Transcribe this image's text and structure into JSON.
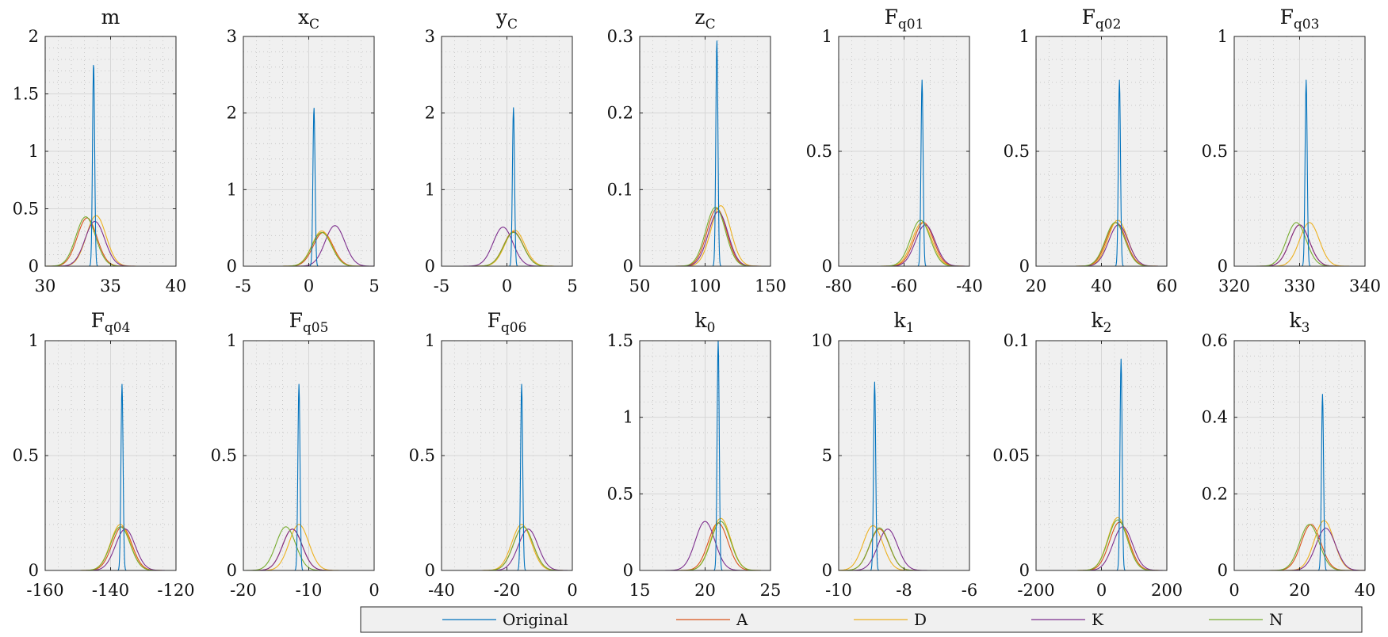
{
  "chart_data": {
    "type": "line",
    "figure": "Gaussian probability density curves per parameter (small multiples)",
    "series_names": [
      "Original",
      "A",
      "D",
      "K",
      "N"
    ],
    "colors": {
      "Original": "#0072BD",
      "A": "#D95319",
      "D": "#EDB120",
      "K": "#7E2F8E",
      "N": "#77AC30"
    },
    "panels": [
      {
        "title": "m",
        "sub": "",
        "xlim": [
          30,
          40
        ],
        "ylim": [
          0,
          2
        ],
        "xticks": [
          30,
          35,
          40
        ],
        "xticklabels": [
          "30",
          "35",
          "40"
        ],
        "yticks": [
          0,
          0.5,
          1,
          1.5,
          2
        ],
        "yticklabels": [
          "0",
          "0.5",
          "1",
          "1.5",
          "2"
        ],
        "series": [
          {
            "name": "Original",
            "mean": 33.7,
            "peak": 1.77
          },
          {
            "name": "A",
            "mean": 33.2,
            "peak": 0.42
          },
          {
            "name": "D",
            "mean": 33.9,
            "peak": 0.44
          },
          {
            "name": "K",
            "mean": 33.8,
            "peak": 0.39
          },
          {
            "name": "N",
            "mean": 33.1,
            "peak": 0.43
          }
        ]
      },
      {
        "title": "x",
        "sub": "C",
        "xlim": [
          -5,
          5
        ],
        "ylim": [
          0,
          3
        ],
        "xticks": [
          -5,
          0,
          5
        ],
        "xticklabels": [
          "-5",
          "0",
          "5"
        ],
        "yticks": [
          0,
          1,
          2,
          3
        ],
        "yticklabels": [
          "0",
          "1",
          "2",
          "3"
        ],
        "series": [
          {
            "name": "Original",
            "mean": 0.4,
            "peak": 2.07
          },
          {
            "name": "A",
            "mean": 1.1,
            "peak": 0.44
          },
          {
            "name": "D",
            "mean": 1.0,
            "peak": 0.46
          },
          {
            "name": "K",
            "mean": 2.0,
            "peak": 0.53
          },
          {
            "name": "N",
            "mean": 1.0,
            "peak": 0.44
          }
        ]
      },
      {
        "title": "y",
        "sub": "C",
        "xlim": [
          -5,
          5
        ],
        "ylim": [
          0,
          3
        ],
        "xticks": [
          -5,
          0,
          5
        ],
        "xticklabels": [
          "-5",
          "0",
          "5"
        ],
        "yticks": [
          0,
          1,
          2,
          3
        ],
        "yticklabels": [
          "0",
          "1",
          "2",
          "3"
        ],
        "series": [
          {
            "name": "Original",
            "mean": 0.5,
            "peak": 2.07
          },
          {
            "name": "A",
            "mean": 0.5,
            "peak": 0.45
          },
          {
            "name": "D",
            "mean": 0.6,
            "peak": 0.47
          },
          {
            "name": "K",
            "mean": -0.3,
            "peak": 0.51
          },
          {
            "name": "N",
            "mean": 0.5,
            "peak": 0.44
          }
        ]
      },
      {
        "title": "z",
        "sub": "C",
        "xlim": [
          50,
          150
        ],
        "ylim": [
          0,
          0.3
        ],
        "xticks": [
          50,
          100,
          150
        ],
        "xticklabels": [
          "50",
          "100",
          "150"
        ],
        "yticks": [
          0,
          0.1,
          0.2,
          0.3
        ],
        "yticklabels": [
          "0",
          "0.1",
          "0.2",
          "0.3"
        ],
        "series": [
          {
            "name": "Original",
            "mean": 109,
            "peak": 0.295
          },
          {
            "name": "A",
            "mean": 109,
            "peak": 0.075
          },
          {
            "name": "D",
            "mean": 112,
            "peak": 0.079
          },
          {
            "name": "K",
            "mean": 110,
            "peak": 0.071
          },
          {
            "name": "N",
            "mean": 108,
            "peak": 0.077
          }
        ]
      },
      {
        "title": "F",
        "sub": "q01",
        "xlim": [
          -80,
          -40
        ],
        "ylim": [
          0,
          1
        ],
        "xticks": [
          -80,
          -60,
          -40
        ],
        "xticklabels": [
          "-80",
          "-60",
          "-40"
        ],
        "yticks": [
          0,
          0.5,
          1
        ],
        "yticklabels": [
          "0",
          "0.5",
          "1"
        ],
        "series": [
          {
            "name": "Original",
            "mean": -54.5,
            "peak": 0.81
          },
          {
            "name": "A",
            "mean": -54,
            "peak": 0.19
          },
          {
            "name": "D",
            "mean": -54.5,
            "peak": 0.19
          },
          {
            "name": "K",
            "mean": -53.5,
            "peak": 0.18
          },
          {
            "name": "N",
            "mean": -55,
            "peak": 0.2
          }
        ]
      },
      {
        "title": "F",
        "sub": "q02",
        "xlim": [
          20,
          60
        ],
        "ylim": [
          0,
          1
        ],
        "xticks": [
          20,
          40,
          60
        ],
        "xticklabels": [
          "20",
          "40",
          "60"
        ],
        "yticks": [
          0,
          0.5,
          1
        ],
        "yticklabels": [
          "0",
          "0.5",
          "1"
        ],
        "series": [
          {
            "name": "Original",
            "mean": 45.5,
            "peak": 0.81
          },
          {
            "name": "A",
            "mean": 44.5,
            "peak": 0.19
          },
          {
            "name": "D",
            "mean": 45,
            "peak": 0.2
          },
          {
            "name": "K",
            "mean": 45.2,
            "peak": 0.18
          },
          {
            "name": "N",
            "mean": 44.2,
            "peak": 0.19
          }
        ]
      },
      {
        "title": "F",
        "sub": "q03",
        "xlim": [
          320,
          340
        ],
        "ylim": [
          0,
          1
        ],
        "xticks": [
          320,
          330,
          340
        ],
        "xticklabels": [
          "320",
          "330",
          "340"
        ],
        "yticks": [
          0,
          0.5,
          1
        ],
        "yticklabels": [
          "0",
          "0.5",
          "1"
        ],
        "series": [
          {
            "name": "Original",
            "mean": 331,
            "peak": 0.81
          },
          {
            "name": "A",
            "mean": 330,
            "peak": 0.18
          },
          {
            "name": "D",
            "mean": 331.5,
            "peak": 0.19
          },
          {
            "name": "K",
            "mean": 330,
            "peak": 0.18
          },
          {
            "name": "N",
            "mean": 329.5,
            "peak": 0.19
          }
        ]
      },
      {
        "title": "F",
        "sub": "q04",
        "xlim": [
          -160,
          -120
        ],
        "ylim": [
          0,
          1
        ],
        "xticks": [
          -160,
          -140,
          -120
        ],
        "xticklabels": [
          "-160",
          "-140",
          "-120"
        ],
        "yticks": [
          0,
          0.5,
          1
        ],
        "yticklabels": [
          "0",
          "0.5",
          "1"
        ],
        "series": [
          {
            "name": "Original",
            "mean": -136.5,
            "peak": 0.81
          },
          {
            "name": "A",
            "mean": -136.5,
            "peak": 0.19
          },
          {
            "name": "D",
            "mean": -137,
            "peak": 0.2
          },
          {
            "name": "K",
            "mean": -135.5,
            "peak": 0.18
          },
          {
            "name": "N",
            "mean": -137,
            "peak": 0.19
          }
        ]
      },
      {
        "title": "F",
        "sub": "q05",
        "xlim": [
          -20,
          0
        ],
        "ylim": [
          0,
          1
        ],
        "xticks": [
          -20,
          -10,
          0
        ],
        "xticklabels": [
          "-20",
          "-10",
          "0"
        ],
        "yticks": [
          0,
          0.5,
          1
        ],
        "yticklabels": [
          "0",
          "0.5",
          "1"
        ],
        "series": [
          {
            "name": "Original",
            "mean": -11.5,
            "peak": 0.81
          },
          {
            "name": "A",
            "mean": -12.5,
            "peak": 0.18
          },
          {
            "name": "D",
            "mean": -11.5,
            "peak": 0.2
          },
          {
            "name": "K",
            "mean": -12.5,
            "peak": 0.18
          },
          {
            "name": "N",
            "mean": -13.5,
            "peak": 0.19
          }
        ]
      },
      {
        "title": "F",
        "sub": "q06",
        "xlim": [
          -40,
          0
        ],
        "ylim": [
          0,
          1
        ],
        "xticks": [
          -40,
          -20,
          0
        ],
        "xticklabels": [
          "-40",
          "-20",
          "0"
        ],
        "yticks": [
          0,
          0.5,
          1
        ],
        "yticklabels": [
          "0",
          "0.5",
          "1"
        ],
        "series": [
          {
            "name": "Original",
            "mean": -15.5,
            "peak": 0.81
          },
          {
            "name": "A",
            "mean": -15,
            "peak": 0.19
          },
          {
            "name": "D",
            "mean": -15.5,
            "peak": 0.2
          },
          {
            "name": "K",
            "mean": -13.5,
            "peak": 0.18
          },
          {
            "name": "N",
            "mean": -15,
            "peak": 0.19
          }
        ]
      },
      {
        "title": "k",
        "sub": "0",
        "xlim": [
          15,
          25
        ],
        "ylim": [
          0,
          1.5
        ],
        "xticks": [
          15,
          20,
          25
        ],
        "xticklabels": [
          "15",
          "20",
          "25"
        ],
        "yticks": [
          0,
          0.5,
          1,
          1.5
        ],
        "yticklabels": [
          "0",
          "0.5",
          "1",
          "1.5"
        ],
        "series": [
          {
            "name": "Original",
            "mean": 21,
            "peak": 1.5
          },
          {
            "name": "A",
            "mean": 21,
            "peak": 0.31
          },
          {
            "name": "D",
            "mean": 21.2,
            "peak": 0.34
          },
          {
            "name": "K",
            "mean": 20,
            "peak": 0.32
          },
          {
            "name": "N",
            "mean": 21.2,
            "peak": 0.32
          }
        ]
      },
      {
        "title": "k",
        "sub": "1",
        "xlim": [
          -10,
          -6
        ],
        "ylim": [
          0,
          10
        ],
        "xticks": [
          -10,
          -8,
          -6
        ],
        "xticklabels": [
          "-10",
          "-8",
          "-6"
        ],
        "yticks": [
          0,
          5,
          10
        ],
        "yticklabels": [
          "0",
          "5",
          "10"
        ],
        "series": [
          {
            "name": "Original",
            "mean": -8.9,
            "peak": 8.2
          },
          {
            "name": "A",
            "mean": -8.75,
            "peak": 1.8
          },
          {
            "name": "D",
            "mean": -8.95,
            "peak": 1.95
          },
          {
            "name": "K",
            "mean": -8.5,
            "peak": 1.8
          },
          {
            "name": "N",
            "mean": -8.75,
            "peak": 1.85
          }
        ]
      },
      {
        "title": "k",
        "sub": "2",
        "xlim": [
          -200,
          200
        ],
        "ylim": [
          0,
          0.1
        ],
        "xticks": [
          -200,
          0,
          200
        ],
        "xticklabels": [
          "-200",
          "0",
          "200"
        ],
        "yticks": [
          0,
          0.05,
          0.1
        ],
        "yticklabels": [
          "0",
          "0.05",
          "0.1"
        ],
        "series": [
          {
            "name": "Original",
            "mean": 60,
            "peak": 0.092
          },
          {
            "name": "A",
            "mean": 55,
            "peak": 0.021
          },
          {
            "name": "D",
            "mean": 50,
            "peak": 0.023
          },
          {
            "name": "K",
            "mean": 65,
            "peak": 0.019
          },
          {
            "name": "N",
            "mean": 50,
            "peak": 0.022
          }
        ]
      },
      {
        "title": "k",
        "sub": "3",
        "xlim": [
          0,
          40
        ],
        "ylim": [
          0,
          0.6
        ],
        "xticks": [
          0,
          20,
          40
        ],
        "xticklabels": [
          "0",
          "20",
          "40"
        ],
        "yticks": [
          0,
          0.2,
          0.4,
          0.6
        ],
        "yticklabels": [
          "0",
          "0.2",
          "0.4",
          "0.6"
        ],
        "series": [
          {
            "name": "Original",
            "mean": 27,
            "peak": 0.46
          },
          {
            "name": "A",
            "mean": 23.5,
            "peak": 0.12
          },
          {
            "name": "D",
            "mean": 27.5,
            "peak": 0.13
          },
          {
            "name": "K",
            "mean": 28,
            "peak": 0.11
          },
          {
            "name": "N",
            "mean": 23,
            "peak": 0.12
          }
        ]
      }
    ],
    "legend": {
      "placement": "bottom",
      "entries": [
        "Original",
        "A",
        "D",
        "K",
        "N"
      ]
    }
  }
}
